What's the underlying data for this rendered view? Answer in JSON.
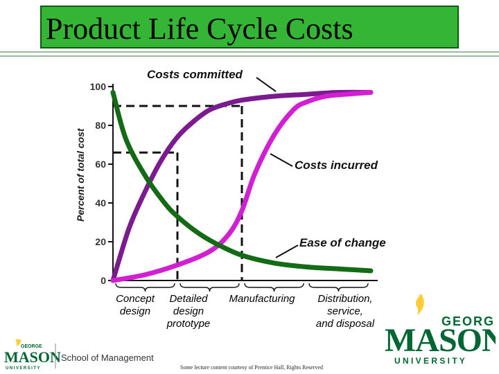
{
  "slide_title": "Product Life Cycle Costs",
  "chart_data": {
    "type": "line",
    "ylabel": "Percent of total cost",
    "yticks": [
      "100",
      "80",
      "60",
      "40",
      "20",
      "0"
    ],
    "ylim": [
      0,
      100
    ],
    "phases": [
      {
        "lines": [
          "Concept",
          "design"
        ]
      },
      {
        "lines": [
          "Detailed",
          "design",
          "prototype"
        ]
      },
      {
        "lines": [
          "Manufacturing"
        ]
      },
      {
        "lines": [
          "Distribution,",
          "service,",
          "and disposal"
        ]
      }
    ],
    "reference_levels": [
      90,
      66
    ],
    "series": [
      {
        "name": "Costs committed",
        "color": "#7b1b8f",
        "x": [
          0,
          0.25,
          0.5,
          0.75,
          1.0,
          1.25,
          1.5,
          1.75,
          2.0,
          2.5,
          3.0,
          3.5,
          4.0
        ],
        "values": [
          0,
          27,
          46,
          62,
          74,
          82,
          88,
          91,
          93,
          95,
          96,
          97,
          97
        ]
      },
      {
        "name": "Costs incurred",
        "color": "#d11fd1",
        "x": [
          0,
          0.5,
          1.0,
          1.5,
          1.8,
          2.0,
          2.2,
          2.5,
          2.8,
          3.0,
          3.3,
          3.6,
          4.0
        ],
        "values": [
          0,
          3,
          8,
          15,
          24,
          36,
          55,
          75,
          88,
          92,
          95,
          96,
          97
        ]
      },
      {
        "name": "Ease of change",
        "color": "#136b16",
        "x": [
          0,
          0.2,
          0.5,
          0.8,
          1.0,
          1.3,
          1.6,
          2.0,
          2.5,
          3.0,
          3.5,
          4.0
        ],
        "values": [
          97,
          73,
          54,
          40,
          33,
          25,
          19,
          13,
          9,
          7,
          6,
          5
        ]
      }
    ]
  },
  "branding": {
    "logo_big": {
      "line1": "GEORGE",
      "line2": "MASON",
      "line3": "U N I V E R S I T Y"
    },
    "logo_small": {
      "line1": "GEORGE",
      "line2": "MASON",
      "line3": "UNIVERSITY",
      "school": "School of Management"
    },
    "colors": {
      "green": "#006633",
      "gold": "#ffcc33"
    }
  },
  "footer_note": "Some lecture content courtesy of Prentice Hall, Rights Reserved"
}
